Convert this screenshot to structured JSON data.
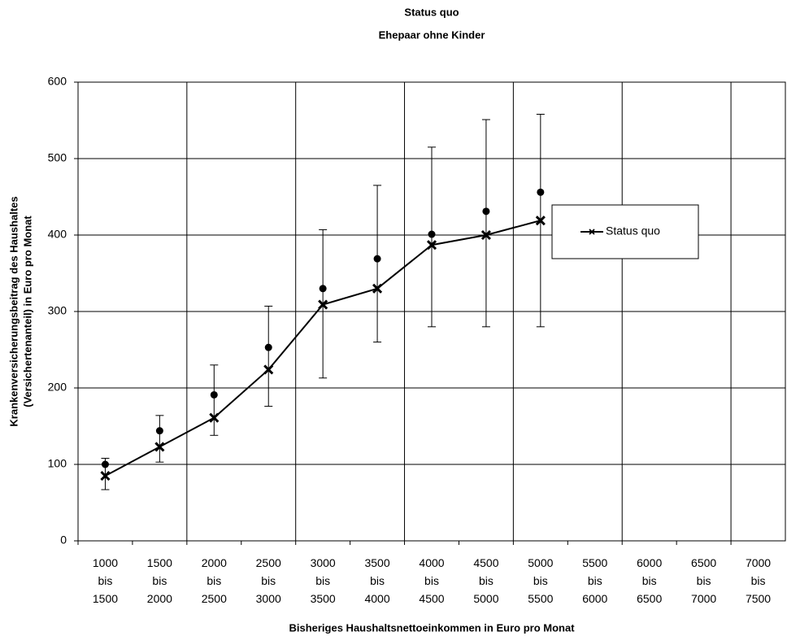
{
  "chart_data": {
    "type": "line",
    "title": "Status quo",
    "subtitle": "Ehepaar ohne Kinder",
    "xlabel": "Bisheriges Haushaltsnettoeinkommen in Euro pro Monat",
    "ylabel": [
      "Krankenversicherungsbeitrag des Haushaltes",
      "(Versichertenanteil) in Euro pro Monat"
    ],
    "categories": [
      "1000 bis 1500",
      "1500 bis 2000",
      "2000 bis 2500",
      "2500 bis 3000",
      "3000 bis 3500",
      "3500 bis 4000",
      "4000 bis 4500",
      "4500 bis 5000",
      "5000 bis 5500",
      "5500 bis 6000",
      "6000 bis 6500",
      "6500 bis 7000",
      "7000 bis 7500"
    ],
    "series": [
      {
        "name": "Status quo",
        "color": "#000000",
        "marker": "x",
        "values": [
          85,
          123,
          161,
          224,
          309,
          330,
          387,
          400,
          419,
          null,
          null,
          null,
          null
        ]
      }
    ],
    "points": {
      "color": "#000000",
      "values": [
        100,
        144,
        191,
        253,
        330,
        369,
        401,
        431,
        456,
        null,
        null,
        null,
        null
      ]
    },
    "range": {
      "low": [
        67,
        103,
        138,
        176,
        213,
        260,
        280,
        280,
        280,
        null,
        null,
        null,
        null
      ],
      "high": [
        108,
        164,
        230,
        307,
        407,
        465,
        515,
        551,
        558,
        null,
        null,
        null,
        null
      ]
    },
    "ylim": [
      0,
      600
    ],
    "yticks": [
      0,
      100,
      200,
      300,
      400,
      500,
      600
    ],
    "grid": true,
    "xgrid_interval": 2,
    "legend": "right"
  }
}
